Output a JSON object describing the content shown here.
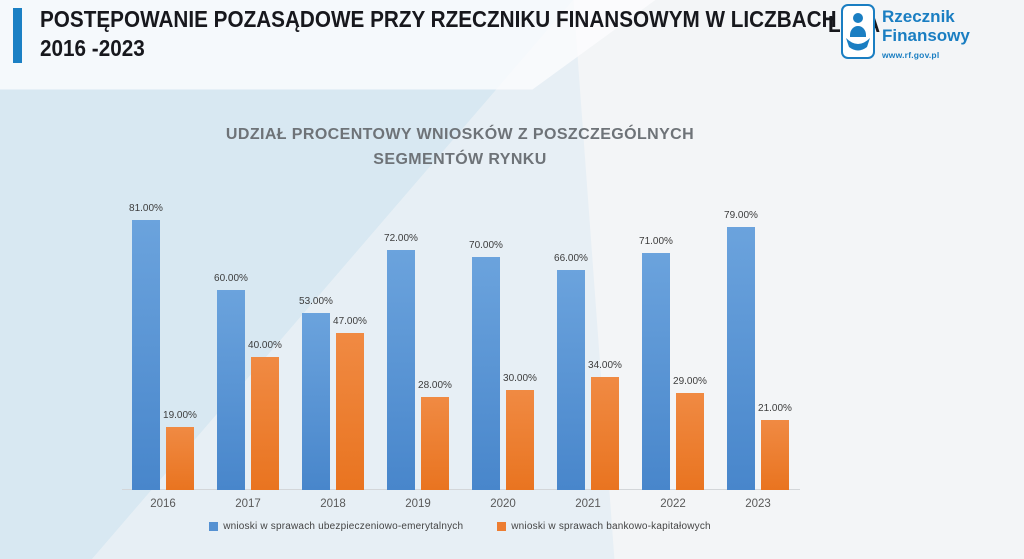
{
  "header": {
    "accent_color": "#1b80c4",
    "title_line1": "POSTĘPOWANIE POZASĄDOWE PRZY RZECZNIKU FINANSOWYM W LICZBACH",
    "title_line2": "2016 -2023",
    "lata_text": "LATA",
    "logo": {
      "name_line1": "Rzecznik",
      "name_line2": "Finansowy",
      "url": "www.rf.gov.pl",
      "color": "#1a7ec2"
    }
  },
  "chart_data": {
    "type": "bar",
    "title_line1": "UDZIAŁ PROCENTOWY WNIOSKÓW Z POSZCZEGÓLNYCH",
    "title_line2": "SEGMENTÓW RYNKU",
    "categories": [
      "2016",
      "2017",
      "2018",
      "2019",
      "2020",
      "2021",
      "2022",
      "2023"
    ],
    "series": [
      {
        "name": "wnioski w sprawach ubezpieczeniowo-emerytalnych",
        "color": "#5591d2",
        "color_top": "#6ba3dd",
        "color_bottom": "#4886cb",
        "values": [
          81,
          60,
          53,
          72,
          70,
          66,
          71,
          79
        ]
      },
      {
        "name": "wnioski w sprawach bankowo-kapitałowych",
        "color": "#ed7d31",
        "color_top": "#f08a43",
        "color_bottom": "#e97420",
        "values": [
          19,
          40,
          47,
          28,
          30,
          34,
          29,
          21
        ]
      }
    ],
    "value_label_suffix": "%",
    "value_label_decimals": 2,
    "ylim": [
      0,
      100
    ],
    "grid": false,
    "data_labels": true,
    "legend_position": "bottom"
  }
}
